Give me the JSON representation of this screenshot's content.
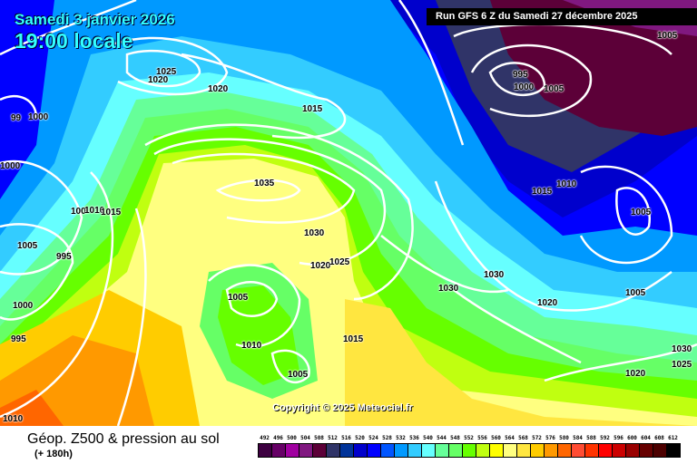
{
  "header": {
    "date": "Samedi 3 janvier 2026",
    "time": "19:00 locale",
    "run": "Run GFS 6 Z du Samedi 27 décembre 2025"
  },
  "copyright": "Copyright © 2025 Meteociel.fr",
  "footer": {
    "title": "Géop. Z500 & pression au sol",
    "lead": "(+ 180h)"
  },
  "pressure_labels": [
    "1025",
    "1020",
    "1020",
    "995",
    "1000",
    "1005",
    "1005",
    "1015",
    "99",
    "1000",
    "1000",
    "1035",
    "1015",
    "1010",
    "1005",
    "100",
    "1010",
    "1015",
    "1005",
    "995",
    "1030",
    "1020",
    "1025",
    "1030",
    "1030",
    "1005",
    "1020",
    "1005",
    "1000",
    "995",
    "1010",
    "1015",
    "1005",
    "1030",
    "1025",
    "1020",
    "1010"
  ],
  "legend": {
    "levels": [
      "492",
      "496",
      "500",
      "504",
      "508",
      "512",
      "516",
      "520",
      "524",
      "528",
      "532",
      "536",
      "540",
      "544",
      "548",
      "552",
      "556",
      "560",
      "564",
      "568",
      "572",
      "576",
      "580",
      "584",
      "588",
      "592",
      "596",
      "600",
      "604",
      "608",
      "612"
    ],
    "colors": [
      "#3d0040",
      "#660066",
      "#a000a0",
      "#801880",
      "#5c0038",
      "#303468",
      "#003399",
      "#0000cc",
      "#0000ff",
      "#0055ff",
      "#0099ff",
      "#33ccff",
      "#66ffff",
      "#66ff99",
      "#66ff66",
      "#66ff00",
      "#c0ff10",
      "#ffff00",
      "#ffff80",
      "#ffe640",
      "#ffcc00",
      "#ff9900",
      "#ff6600",
      "#ff4c33",
      "#ff3300",
      "#ff0000",
      "#cc0000",
      "#990000",
      "#660000",
      "#4c0000",
      "#000000"
    ]
  }
}
